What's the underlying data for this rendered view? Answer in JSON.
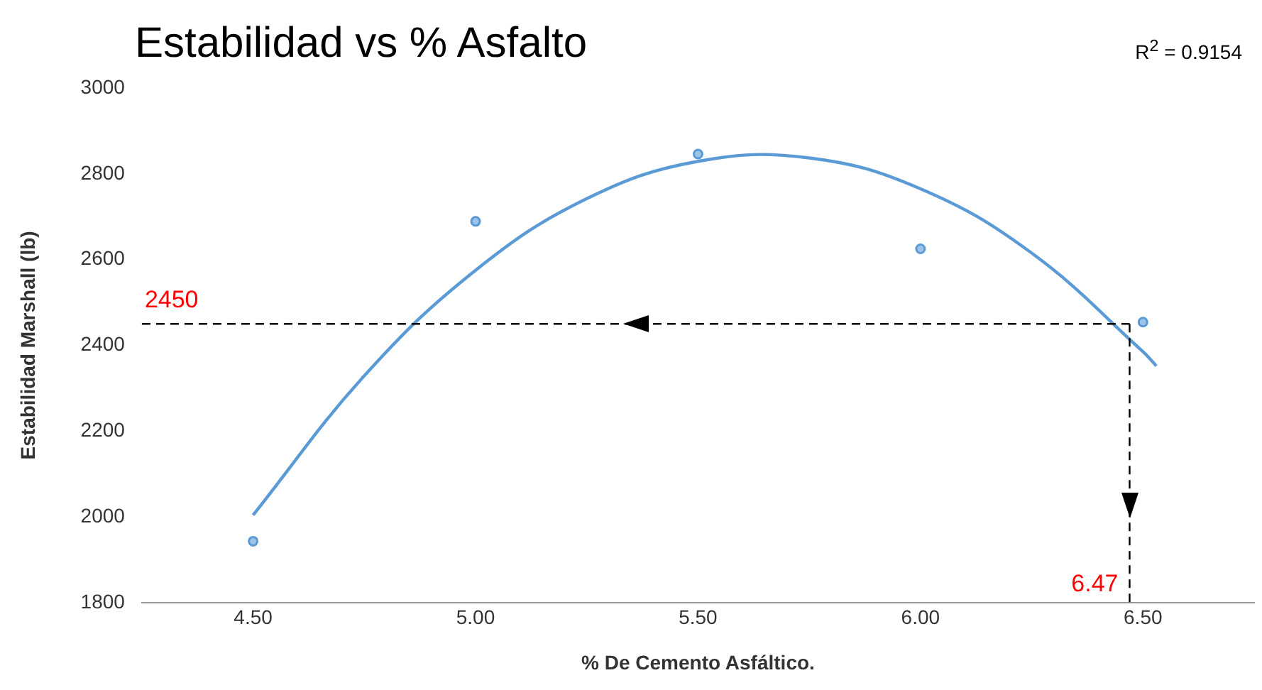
{
  "chart_data": {
    "type": "scatter",
    "title": "Estabilidad vs % Asfalto",
    "xlabel": "% De Cemento Asfáltico.",
    "ylabel": "Estabilidad Marshall (lb)",
    "annotations": [
      "R$^{2}$ = 0.9154"
    ],
    "xlim": [
      4.25,
      6.75
    ],
    "xticks": [
      {
        "value": 4.5,
        "label": "4.50"
      },
      {
        "value": 5,
        "label": "5.00"
      },
      {
        "value": 5.5,
        "label": "5.50"
      },
      {
        "value": 6,
        "label": "6.00"
      },
      {
        "value": 6.5,
        "label": "6.50"
      }
    ],
    "ylim": [
      1800,
      3000
    ],
    "yticks": [
      1800,
      2000,
      2200,
      2400,
      2600,
      2800,
      3000
    ],
    "grid": false,
    "legend": false,
    "marker": "circle",
    "series": [
      {
        "color": "#5b9bd5",
        "x": [
          4.5,
          5,
          5.5,
          6,
          6.5
        ],
        "values": [
          1943,
          2689,
          2846,
          2625,
          2454
        ]
      },
      {
        "type": "line",
        "color": "#5b9bd5",
        "marker": "none",
        "x": [
          4.5,
          4.75,
          5,
          5.25,
          5.5,
          5.75,
          6,
          6.25,
          6.5,
          6.53
        ],
        "values": [
          2004,
          2329,
          2575,
          2742,
          2829,
          2837,
          2765,
          2615,
          2385,
          2352
        ]
      }
    ],
    "ref_lines": [
      {
        "axis": "y",
        "value": 2450,
        "label": "2450",
        "color": "#000000",
        "line_style": "dashed"
      },
      {
        "axis": "x",
        "value": 6.47,
        "label": "6.47",
        "color": "#000000",
        "line_style": "dashed"
      }
    ]
  }
}
